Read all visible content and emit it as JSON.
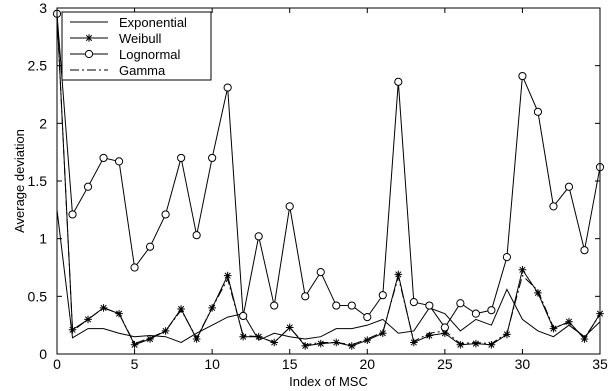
{
  "chart_data": {
    "type": "line",
    "xlabel": "Index of MSC",
    "ylabel": "Average deviation",
    "xlim": [
      0,
      35
    ],
    "ylim": [
      0,
      3
    ],
    "xticks": [
      0,
      5,
      10,
      15,
      20,
      25,
      30,
      35
    ],
    "yticks": [
      0,
      0.5,
      1,
      1.5,
      2,
      2.5,
      3
    ],
    "xtick_labels": [
      "0",
      "5",
      "10",
      "15",
      "20",
      "25",
      "30",
      "35"
    ],
    "ytick_labels": [
      "0",
      "0.5",
      "1",
      "1.5",
      "2",
      "2.5",
      "3"
    ],
    "grid": false,
    "legend_position": "top-left",
    "x": [
      0,
      1,
      2,
      3,
      4,
      5,
      6,
      7,
      8,
      9,
      10,
      11,
      12,
      13,
      14,
      15,
      16,
      17,
      18,
      19,
      20,
      21,
      22,
      23,
      24,
      25,
      26,
      27,
      28,
      29,
      30,
      31,
      32,
      33,
      34,
      35
    ],
    "series": [
      {
        "name": "Exponential",
        "style": "solid",
        "marker": "none",
        "color": "#000000",
        "values": [
          1.25,
          0.14,
          0.22,
          0.22,
          0.18,
          0.15,
          0.16,
          0.15,
          0.1,
          0.18,
          0.25,
          0.32,
          0.35,
          0.12,
          0.18,
          0.15,
          0.13,
          0.15,
          0.22,
          0.22,
          0.25,
          0.3,
          0.18,
          0.2,
          0.4,
          0.35,
          0.2,
          0.3,
          0.25,
          0.56,
          0.3,
          0.2,
          0.15,
          0.25,
          0.15,
          0.28
        ]
      },
      {
        "name": "Weibull",
        "style": "solid",
        "marker": "asterisk",
        "color": "#000000",
        "values": [
          2.95,
          0.21,
          0.3,
          0.4,
          0.35,
          0.08,
          0.13,
          0.2,
          0.39,
          0.13,
          0.4,
          0.68,
          0.15,
          0.15,
          0.1,
          0.23,
          0.07,
          0.09,
          0.1,
          0.07,
          0.12,
          0.18,
          0.69,
          0.1,
          0.16,
          0.18,
          0.08,
          0.09,
          0.08,
          0.17,
          0.73,
          0.53,
          0.22,
          0.28,
          0.13,
          0.35
        ]
      },
      {
        "name": "Lognormal",
        "style": "solid",
        "marker": "circle",
        "color": "#000000",
        "values": [
          2.95,
          1.21,
          1.45,
          1.7,
          1.67,
          0.75,
          0.93,
          1.21,
          1.7,
          1.03,
          1.7,
          2.31,
          0.33,
          1.02,
          0.42,
          1.28,
          0.5,
          0.71,
          0.42,
          0.42,
          0.32,
          0.51,
          2.36,
          0.45,
          0.42,
          0.23,
          0.44,
          0.35,
          0.38,
          0.84,
          2.41,
          2.1,
          1.28,
          1.45,
          0.9,
          1.62
        ]
      },
      {
        "name": "Gamma",
        "style": "dashdot",
        "marker": "none",
        "color": "#000000",
        "values": [
          2.95,
          0.2,
          0.3,
          0.4,
          0.35,
          0.09,
          0.14,
          0.2,
          0.38,
          0.14,
          0.4,
          0.65,
          0.16,
          0.15,
          0.1,
          0.23,
          0.08,
          0.1,
          0.1,
          0.08,
          0.13,
          0.19,
          0.67,
          0.11,
          0.18,
          0.2,
          0.09,
          0.1,
          0.09,
          0.18,
          0.68,
          0.55,
          0.23,
          0.27,
          0.14,
          0.34
        ]
      }
    ]
  }
}
